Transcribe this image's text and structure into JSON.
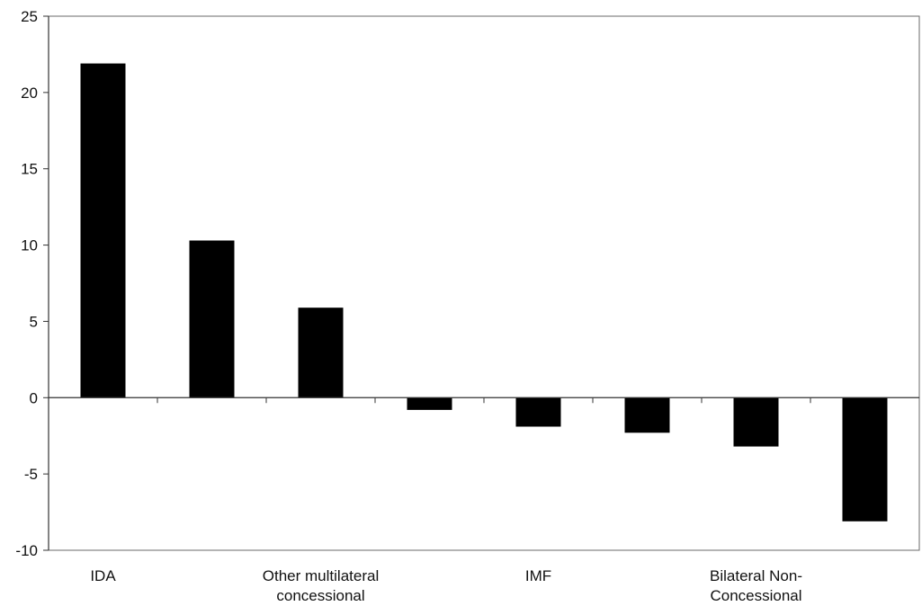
{
  "chart_data": {
    "type": "bar",
    "categories": [
      "IDA",
      "",
      "Other multilateral concessional",
      "",
      "IMF",
      "",
      "Bilateral Non-Concessional",
      ""
    ],
    "category_label_lines": [
      [
        "IDA"
      ],
      [],
      [
        "Other multilateral",
        "concessional"
      ],
      [],
      [
        "IMF"
      ],
      [],
      [
        "Bilateral Non-",
        "Concessional"
      ],
      []
    ],
    "values": [
      21.9,
      10.3,
      5.9,
      -0.8,
      -1.9,
      -2.3,
      -3.2,
      -8.1
    ],
    "ylim": [
      -10,
      25
    ],
    "yticks": [
      -10,
      -5,
      0,
      5,
      10,
      15,
      20,
      25
    ],
    "ytick_labels": [
      "-10",
      "-5",
      "0",
      "5",
      "10",
      "15",
      "20",
      "25"
    ],
    "title": "",
    "xlabel": "",
    "ylabel": "",
    "grid": false,
    "bar_color": "#000000"
  }
}
